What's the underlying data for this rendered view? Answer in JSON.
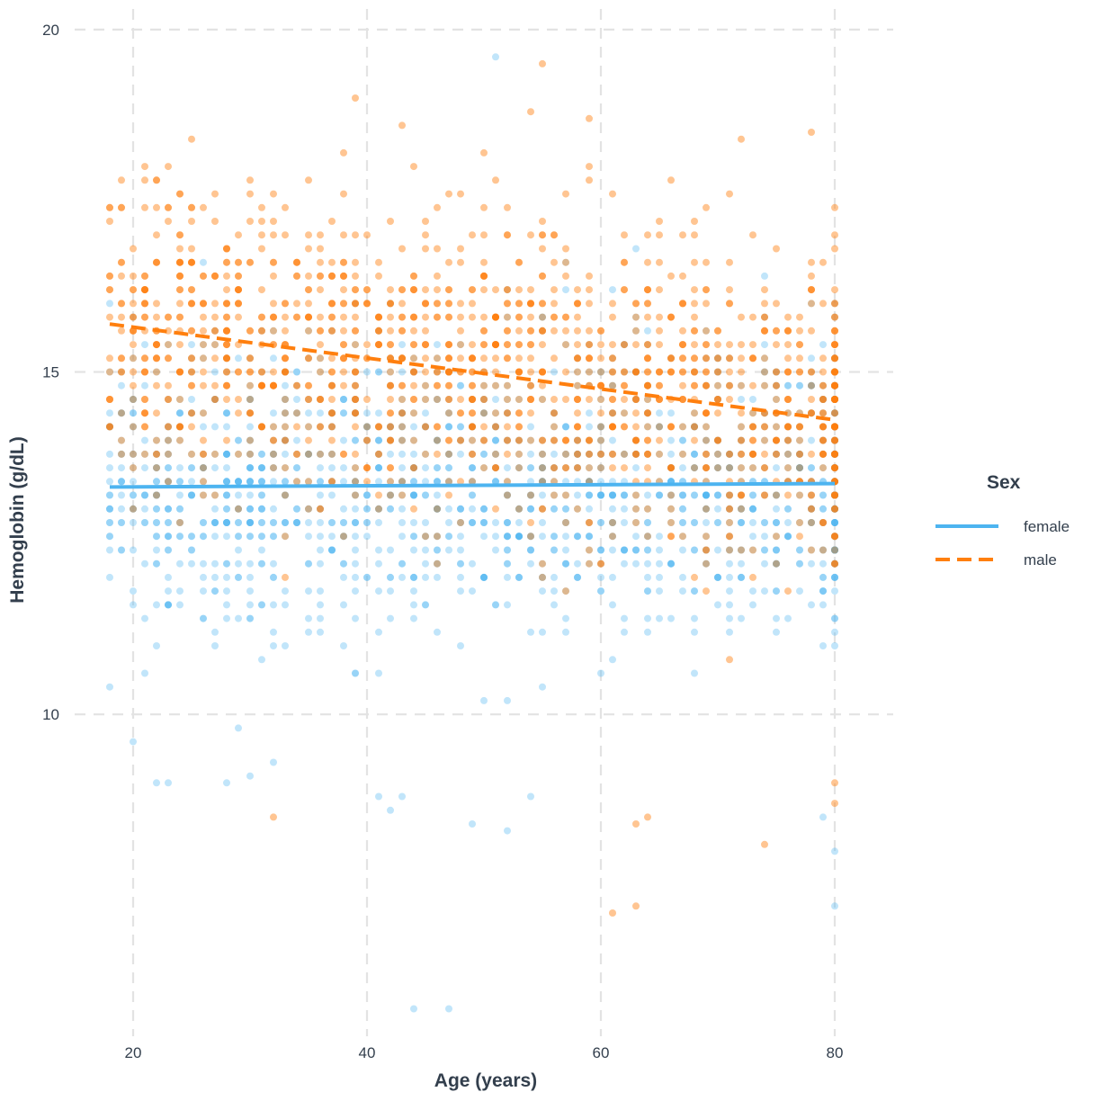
{
  "chart_data": {
    "type": "scatter",
    "title": "",
    "xlabel": "Age (years)",
    "ylabel": "Hemoglobin (g/dL)",
    "xlim": [
      15,
      85
    ],
    "ylim": [
      5.3,
      20.3
    ],
    "x_ticks": [
      20,
      40,
      60,
      80
    ],
    "y_ticks": [
      10,
      15,
      20
    ],
    "grid": true,
    "legend": {
      "title": "Sex",
      "position": "right"
    },
    "series": [
      {
        "name": "female",
        "color": "#4db4f0",
        "line_style": "solid",
        "trend": {
          "x": [
            18,
            80
          ],
          "y": [
            13.32,
            13.37
          ]
        },
        "n_points": 1500,
        "y_range": [
          5.7,
          19.6
        ],
        "outliers": [
          {
            "x": 44,
            "y": 5.7
          },
          {
            "x": 47,
            "y": 5.7
          },
          {
            "x": 51,
            "y": 19.6
          },
          {
            "x": 80,
            "y": 7.2
          },
          {
            "x": 80,
            "y": 8.0
          },
          {
            "x": 79,
            "y": 8.5
          },
          {
            "x": 49,
            "y": 8.4
          },
          {
            "x": 52,
            "y": 8.3
          },
          {
            "x": 20,
            "y": 9.6
          },
          {
            "x": 22,
            "y": 9.0
          },
          {
            "x": 23,
            "y": 9.0
          },
          {
            "x": 28,
            "y": 9.0
          },
          {
            "x": 30,
            "y": 9.1
          },
          {
            "x": 32,
            "y": 9.3
          },
          {
            "x": 41,
            "y": 8.8
          },
          {
            "x": 42,
            "y": 8.6
          },
          {
            "x": 43,
            "y": 8.8
          },
          {
            "x": 54,
            "y": 8.8
          }
        ]
      },
      {
        "name": "male",
        "color": "#ff7f0e",
        "line_style": "dashed",
        "trend": {
          "x": [
            18,
            80
          ],
          "y": [
            15.7,
            14.3
          ]
        },
        "n_points": 1500,
        "y_range": [
          7.1,
          19.5
        ],
        "outliers": [
          {
            "x": 55,
            "y": 19.5
          },
          {
            "x": 39,
            "y": 19.0
          },
          {
            "x": 54,
            "y": 18.8
          },
          {
            "x": 59,
            "y": 18.7
          },
          {
            "x": 78,
            "y": 18.5
          },
          {
            "x": 72,
            "y": 18.4
          },
          {
            "x": 25,
            "y": 18.4
          },
          {
            "x": 61,
            "y": 7.1
          },
          {
            "x": 63,
            "y": 7.2
          },
          {
            "x": 74,
            "y": 8.1
          },
          {
            "x": 63,
            "y": 8.4
          },
          {
            "x": 64,
            "y": 8.5
          },
          {
            "x": 32,
            "y": 8.5
          },
          {
            "x": 80,
            "y": 8.7
          },
          {
            "x": 80,
            "y": 9.0
          }
        ]
      }
    ]
  }
}
